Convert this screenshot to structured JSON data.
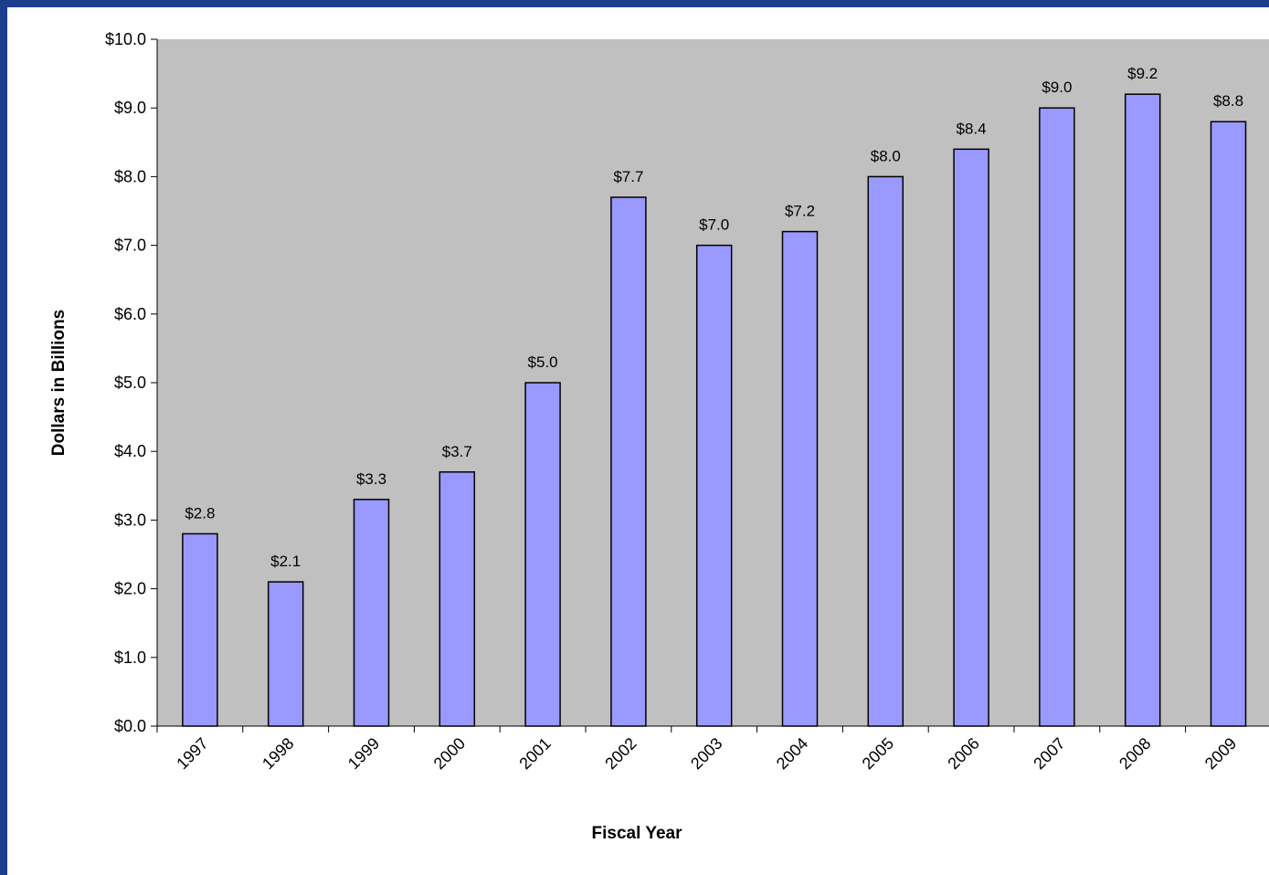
{
  "chart_data": {
    "type": "bar",
    "title": "",
    "xlabel": "Fiscal Year",
    "ylabel": "Dollars in Billions",
    "categories": [
      "1997",
      "1998",
      "1999",
      "2000",
      "2001",
      "2002",
      "2003",
      "2004",
      "2005",
      "2006",
      "2007",
      "2008",
      "2009"
    ],
    "values": [
      2.8,
      2.1,
      3.3,
      3.7,
      5.0,
      7.7,
      7.0,
      7.2,
      8.0,
      8.4,
      9.0,
      9.2,
      8.8
    ],
    "data_labels": [
      "$2.8",
      "$2.1",
      "$3.3",
      "$3.7",
      "$5.0",
      "$7.7",
      "$7.0",
      "$7.2",
      "$8.0",
      "$8.4",
      "$9.0",
      "$9.2",
      "$8.8"
    ],
    "ylim": [
      0,
      10
    ],
    "y_ticks": [
      "$0.0",
      "$1.0",
      "$2.0",
      "$3.0",
      "$4.0",
      "$5.0",
      "$6.0",
      "$7.0",
      "$8.0",
      "$9.0",
      "$10.0"
    ],
    "grid": false,
    "legend": "none",
    "colors": {
      "bar_fill": "#9999ff",
      "bar_stroke": "#000000",
      "plot_background": "#c0c0c0",
      "frame": "#1c3f8c"
    }
  }
}
